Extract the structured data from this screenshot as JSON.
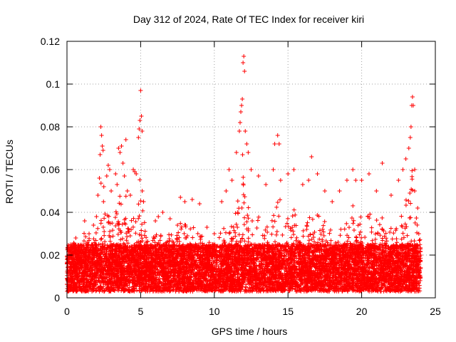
{
  "chart_data": {
    "type": "scatter",
    "title": "Day 312 of 2024, Rate Of TEC Index for receiver kiri",
    "xlabel": "GPS time / hours",
    "ylabel": "ROTI / TECUs",
    "xlim": [
      0,
      25
    ],
    "ylim": [
      0,
      0.12
    ],
    "xticks": [
      0,
      5,
      10,
      15,
      20,
      25
    ],
    "xtick_labels": [
      "0",
      "5",
      "10",
      "15",
      "20",
      "25"
    ],
    "yticks": [
      0,
      0.02,
      0.04,
      0.06,
      0.08,
      0.1,
      0.12
    ],
    "ytick_labels": [
      "0",
      "0.02",
      "0.04",
      "0.06",
      "0.08",
      "0.1",
      "0.12"
    ],
    "grid": true,
    "marker": "+",
    "color": "#ff0000",
    "data_extent_hours": [
      0,
      24
    ],
    "baseline_range": [
      0.003,
      0.025
    ],
    "series": [
      {
        "name": "ROTI",
        "notable_points": [
          {
            "x": 0.0,
            "y": 0.018
          },
          {
            "x": 0.1,
            "y": 0.012
          },
          {
            "x": 0.6,
            "y": 0.028
          },
          {
            "x": 1.2,
            "y": 0.036
          },
          {
            "x": 1.5,
            "y": 0.03
          },
          {
            "x": 1.8,
            "y": 0.034
          },
          {
            "x": 2.0,
            "y": 0.038
          },
          {
            "x": 2.1,
            "y": 0.048
          },
          {
            "x": 2.2,
            "y": 0.056
          },
          {
            "x": 2.25,
            "y": 0.067
          },
          {
            "x": 2.3,
            "y": 0.08
          },
          {
            "x": 2.35,
            "y": 0.076
          },
          {
            "x": 2.4,
            "y": 0.071
          },
          {
            "x": 2.45,
            "y": 0.069
          },
          {
            "x": 2.5,
            "y": 0.052
          },
          {
            "x": 2.7,
            "y": 0.057
          },
          {
            "x": 2.8,
            "y": 0.062
          },
          {
            "x": 2.9,
            "y": 0.06
          },
          {
            "x": 3.0,
            "y": 0.05
          },
          {
            "x": 3.3,
            "y": 0.058
          },
          {
            "x": 3.4,
            "y": 0.053
          },
          {
            "x": 3.5,
            "y": 0.07
          },
          {
            "x": 3.6,
            "y": 0.068
          },
          {
            "x": 3.7,
            "y": 0.071
          },
          {
            "x": 3.8,
            "y": 0.063
          },
          {
            "x": 3.9,
            "y": 0.057
          },
          {
            "x": 4.0,
            "y": 0.074
          },
          {
            "x": 4.1,
            "y": 0.05
          },
          {
            "x": 4.3,
            "y": 0.048
          },
          {
            "x": 4.5,
            "y": 0.06
          },
          {
            "x": 4.6,
            "y": 0.059
          },
          {
            "x": 4.7,
            "y": 0.058
          },
          {
            "x": 4.85,
            "y": 0.075
          },
          {
            "x": 4.9,
            "y": 0.079
          },
          {
            "x": 4.95,
            "y": 0.083
          },
          {
            "x": 5.0,
            "y": 0.097
          },
          {
            "x": 5.05,
            "y": 0.085
          },
          {
            "x": 5.1,
            "y": 0.078
          },
          {
            "x": 5.2,
            "y": 0.045
          },
          {
            "x": 6.0,
            "y": 0.036
          },
          {
            "x": 6.2,
            "y": 0.038
          },
          {
            "x": 6.5,
            "y": 0.04
          },
          {
            "x": 7.0,
            "y": 0.037
          },
          {
            "x": 7.5,
            "y": 0.034
          },
          {
            "x": 7.7,
            "y": 0.047
          },
          {
            "x": 8.0,
            "y": 0.045
          },
          {
            "x": 8.5,
            "y": 0.046
          },
          {
            "x": 9.0,
            "y": 0.044
          },
          {
            "x": 9.5,
            "y": 0.033
          },
          {
            "x": 10.0,
            "y": 0.03
          },
          {
            "x": 10.5,
            "y": 0.045
          },
          {
            "x": 10.8,
            "y": 0.05
          },
          {
            "x": 11.0,
            "y": 0.06
          },
          {
            "x": 11.2,
            "y": 0.055
          },
          {
            "x": 11.5,
            "y": 0.068
          },
          {
            "x": 11.7,
            "y": 0.078
          },
          {
            "x": 11.75,
            "y": 0.082
          },
          {
            "x": 11.8,
            "y": 0.087
          },
          {
            "x": 11.85,
            "y": 0.09
          },
          {
            "x": 11.9,
            "y": 0.093
          },
          {
            "x": 11.95,
            "y": 0.11
          },
          {
            "x": 12.0,
            "y": 0.113
          },
          {
            "x": 12.05,
            "y": 0.106
          },
          {
            "x": 12.1,
            "y": 0.078
          },
          {
            "x": 12.2,
            "y": 0.072
          },
          {
            "x": 12.3,
            "y": 0.068
          },
          {
            "x": 12.5,
            "y": 0.06
          },
          {
            "x": 13.0,
            "y": 0.057
          },
          {
            "x": 13.5,
            "y": 0.053
          },
          {
            "x": 14.0,
            "y": 0.06
          },
          {
            "x": 14.1,
            "y": 0.072
          },
          {
            "x": 14.3,
            "y": 0.076
          },
          {
            "x": 14.4,
            "y": 0.072
          },
          {
            "x": 14.5,
            "y": 0.055
          },
          {
            "x": 15.0,
            "y": 0.058
          },
          {
            "x": 15.4,
            "y": 0.06
          },
          {
            "x": 16.0,
            "y": 0.053
          },
          {
            "x": 16.4,
            "y": 0.055
          },
          {
            "x": 16.6,
            "y": 0.066
          },
          {
            "x": 17.0,
            "y": 0.058
          },
          {
            "x": 17.5,
            "y": 0.05
          },
          {
            "x": 18.0,
            "y": 0.045
          },
          {
            "x": 18.5,
            "y": 0.05
          },
          {
            "x": 19.0,
            "y": 0.055
          },
          {
            "x": 19.4,
            "y": 0.06
          },
          {
            "x": 19.6,
            "y": 0.055
          },
          {
            "x": 20.0,
            "y": 0.055
          },
          {
            "x": 20.5,
            "y": 0.058
          },
          {
            "x": 21.0,
            "y": 0.05
          },
          {
            "x": 21.4,
            "y": 0.063
          },
          {
            "x": 22.0,
            "y": 0.048
          },
          {
            "x": 22.5,
            "y": 0.055
          },
          {
            "x": 22.8,
            "y": 0.06
          },
          {
            "x": 23.0,
            "y": 0.065
          },
          {
            "x": 23.2,
            "y": 0.07
          },
          {
            "x": 23.3,
            "y": 0.075
          },
          {
            "x": 23.35,
            "y": 0.08
          },
          {
            "x": 23.4,
            "y": 0.09
          },
          {
            "x": 23.45,
            "y": 0.094
          },
          {
            "x": 23.5,
            "y": 0.09
          },
          {
            "x": 23.6,
            "y": 0.06
          },
          {
            "x": 23.8,
            "y": 0.042
          },
          {
            "x": 24.0,
            "y": 0.02
          }
        ]
      }
    ]
  }
}
